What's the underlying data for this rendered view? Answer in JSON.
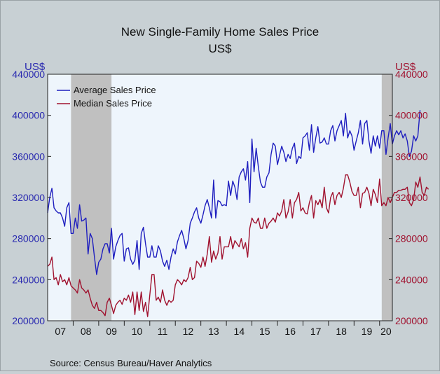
{
  "chart_data": {
    "type": "line",
    "title": "New Single-Family Home Sales Price",
    "subtitle": "US$",
    "ylabel_left": "US$",
    "ylabel_right": "US$",
    "ylim": [
      200000,
      440000
    ],
    "yticks": [
      200000,
      240000,
      280000,
      320000,
      360000,
      400000,
      440000
    ],
    "ytick_labels": [
      "200000",
      "240000",
      "280000",
      "320000",
      "360000",
      "400000",
      "440000"
    ],
    "xlim": [
      "2007-01",
      "2020-07"
    ],
    "xtick_labels": [
      "07",
      "08",
      "09",
      "10",
      "11",
      "12",
      "13",
      "14",
      "15",
      "16",
      "17",
      "18",
      "19",
      "20"
    ],
    "shaded_periods": [
      {
        "start": "2007-12",
        "end": "2009-06"
      },
      {
        "start": "2020-02",
        "end": "2020-07"
      }
    ],
    "legend_position": "top-left",
    "grid": false,
    "source": "Source:  Census Bureau/Haver Analytics",
    "colors": {
      "average": "#1f1fbf",
      "median": "#a0122f",
      "recession": "#c0c0c0",
      "plot_bg": "#eef5fc",
      "left_axis": "#2a2ab0",
      "right_axis": "#a0122f"
    },
    "series": [
      {
        "name": "Average Sales Price",
        "color": "#1f1fbf",
        "axis": "left",
        "start": "2007-01",
        "values": [
          305000,
          320000,
          329000,
          310000,
          307000,
          305000,
          305000,
          300000,
          292000,
          310000,
          315000,
          285000,
          285000,
          300000,
          290000,
          313000,
          297000,
          298000,
          300000,
          265000,
          285000,
          280000,
          262000,
          245000,
          257000,
          260000,
          270000,
          275000,
          275000,
          266000,
          290000,
          260000,
          272000,
          278000,
          283000,
          285000,
          258000,
          270000,
          271000,
          260000,
          255000,
          259000,
          278000,
          250000,
          285000,
          291000,
          275000,
          262000,
          262000,
          273000,
          262000,
          262000,
          273000,
          268000,
          258000,
          253000,
          259000,
          250000,
          262000,
          270000,
          265000,
          277000,
          283000,
          288000,
          280000,
          270000,
          278000,
          295000,
          300000,
          306000,
          310000,
          300000,
          295000,
          303000,
          312000,
          318000,
          310000,
          300000,
          337000,
          300000,
          317000,
          316000,
          312000,
          313000,
          312000,
          336000,
          322000,
          336000,
          330000,
          318000,
          340000,
          345000,
          348000,
          337000,
          355000,
          315000,
          377000,
          345000,
          368000,
          350000,
          335000,
          330000,
          330000,
          340000,
          344000,
          362000,
          373000,
          370000,
          352000,
          361000,
          370000,
          364000,
          355000,
          362000,
          358000,
          368000,
          373000,
          353000,
          360000,
          358000,
          378000,
          380000,
          383000,
          366000,
          391000,
          364000,
          378000,
          389000,
          373000,
          374000,
          378000,
          372000,
          372000,
          385000,
          390000,
          375000,
          385000,
          390000,
          395000,
          380000,
          402000,
          378000,
          385000,
          380000,
          366000,
          375000,
          383000,
          395000,
          372000,
          392000,
          395000,
          375000,
          363000,
          380000,
          370000,
          380000,
          368000,
          385000,
          385000,
          362000,
          378000,
          392000,
          372000,
          380000,
          385000,
          381000,
          385000,
          378000,
          382000,
          375000,
          360000,
          365000,
          380000,
          375000,
          380000,
          405000
        ]
      },
      {
        "name": "Median Sales Price",
        "color": "#a0122f",
        "axis": "right",
        "start": "2007-01",
        "values": [
          253000,
          255000,
          262000,
          240000,
          242000,
          235000,
          245000,
          238000,
          240000,
          235000,
          242000,
          234000,
          232000,
          230000,
          227000,
          240000,
          232000,
          230000,
          227000,
          230000,
          222000,
          215000,
          212000,
          218000,
          210000,
          210000,
          208000,
          205000,
          218000,
          222000,
          215000,
          207000,
          215000,
          218000,
          220000,
          216000,
          222000,
          220000,
          225000,
          218000,
          228000,
          206000,
          228000,
          210000,
          228000,
          209000,
          218000,
          204000,
          225000,
          245000,
          245000,
          220000,
          223000,
          218000,
          230000,
          220000,
          215000,
          220000,
          218000,
          220000,
          235000,
          240000,
          238000,
          235000,
          240000,
          238000,
          242000,
          252000,
          240000,
          242000,
          258000,
          256000,
          252000,
          262000,
          253000,
          265000,
          282000,
          257000,
          268000,
          260000,
          266000,
          282000,
          260000,
          272000,
          272000,
          272000,
          282000,
          270000,
          278000,
          275000,
          272000,
          280000,
          270000,
          276000,
          262000,
          290000,
          300000,
          296000,
          295000,
          300000,
          290000,
          290000,
          300000,
          290000,
          295000,
          297000,
          300000,
          296000,
          305000,
          302000,
          307000,
          318000,
          300000,
          306000,
          318000,
          300000,
          315000,
          318000,
          325000,
          307000,
          310000,
          305000,
          304000,
          315000,
          322000,
          300000,
          317000,
          313000,
          318000,
          310000,
          330000,
          310000,
          305000,
          320000,
          325000,
          313000,
          322000,
          325000,
          320000,
          329000,
          342000,
          342000,
          335000,
          326000,
          322000,
          322000,
          330000,
          310000,
          324000,
          325000,
          330000,
          324000,
          312000,
          328000,
          323000,
          315000,
          338000,
          312000,
          315000,
          312000,
          320000,
          315000,
          320000,
          325000,
          325000,
          327000,
          327000,
          328000,
          328000,
          330000,
          315000,
          312000,
          318000,
          335000,
          330000,
          340000,
          325000,
          322000,
          330000,
          328000
        ]
      }
    ]
  }
}
